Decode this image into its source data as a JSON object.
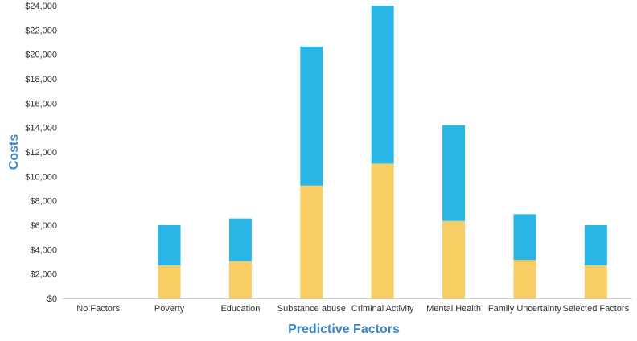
{
  "chart_data": {
    "type": "bar",
    "stacked": true,
    "xlabel": "Predictive Factors",
    "ylabel": "Costs",
    "ylim": [
      0,
      24000
    ],
    "ytick_step": 2000,
    "ytick_prefix": "$",
    "categories": [
      "No Factors",
      "Poverty",
      "Education",
      "Substance abuse",
      "Criminal Activity",
      "Mental Health",
      "Family Uncertainty",
      "Selected Factors"
    ],
    "series": [
      {
        "color": "#f8cd64",
        "values": [
          0,
          2700,
          3050,
          9250,
          11050,
          6350,
          3150,
          2700
        ]
      },
      {
        "color": "#29b6e6",
        "values": [
          0,
          3300,
          3500,
          11400,
          12950,
          7850,
          3750,
          3300
        ]
      }
    ],
    "grid": false,
    "axis_color": "#cccccc"
  }
}
